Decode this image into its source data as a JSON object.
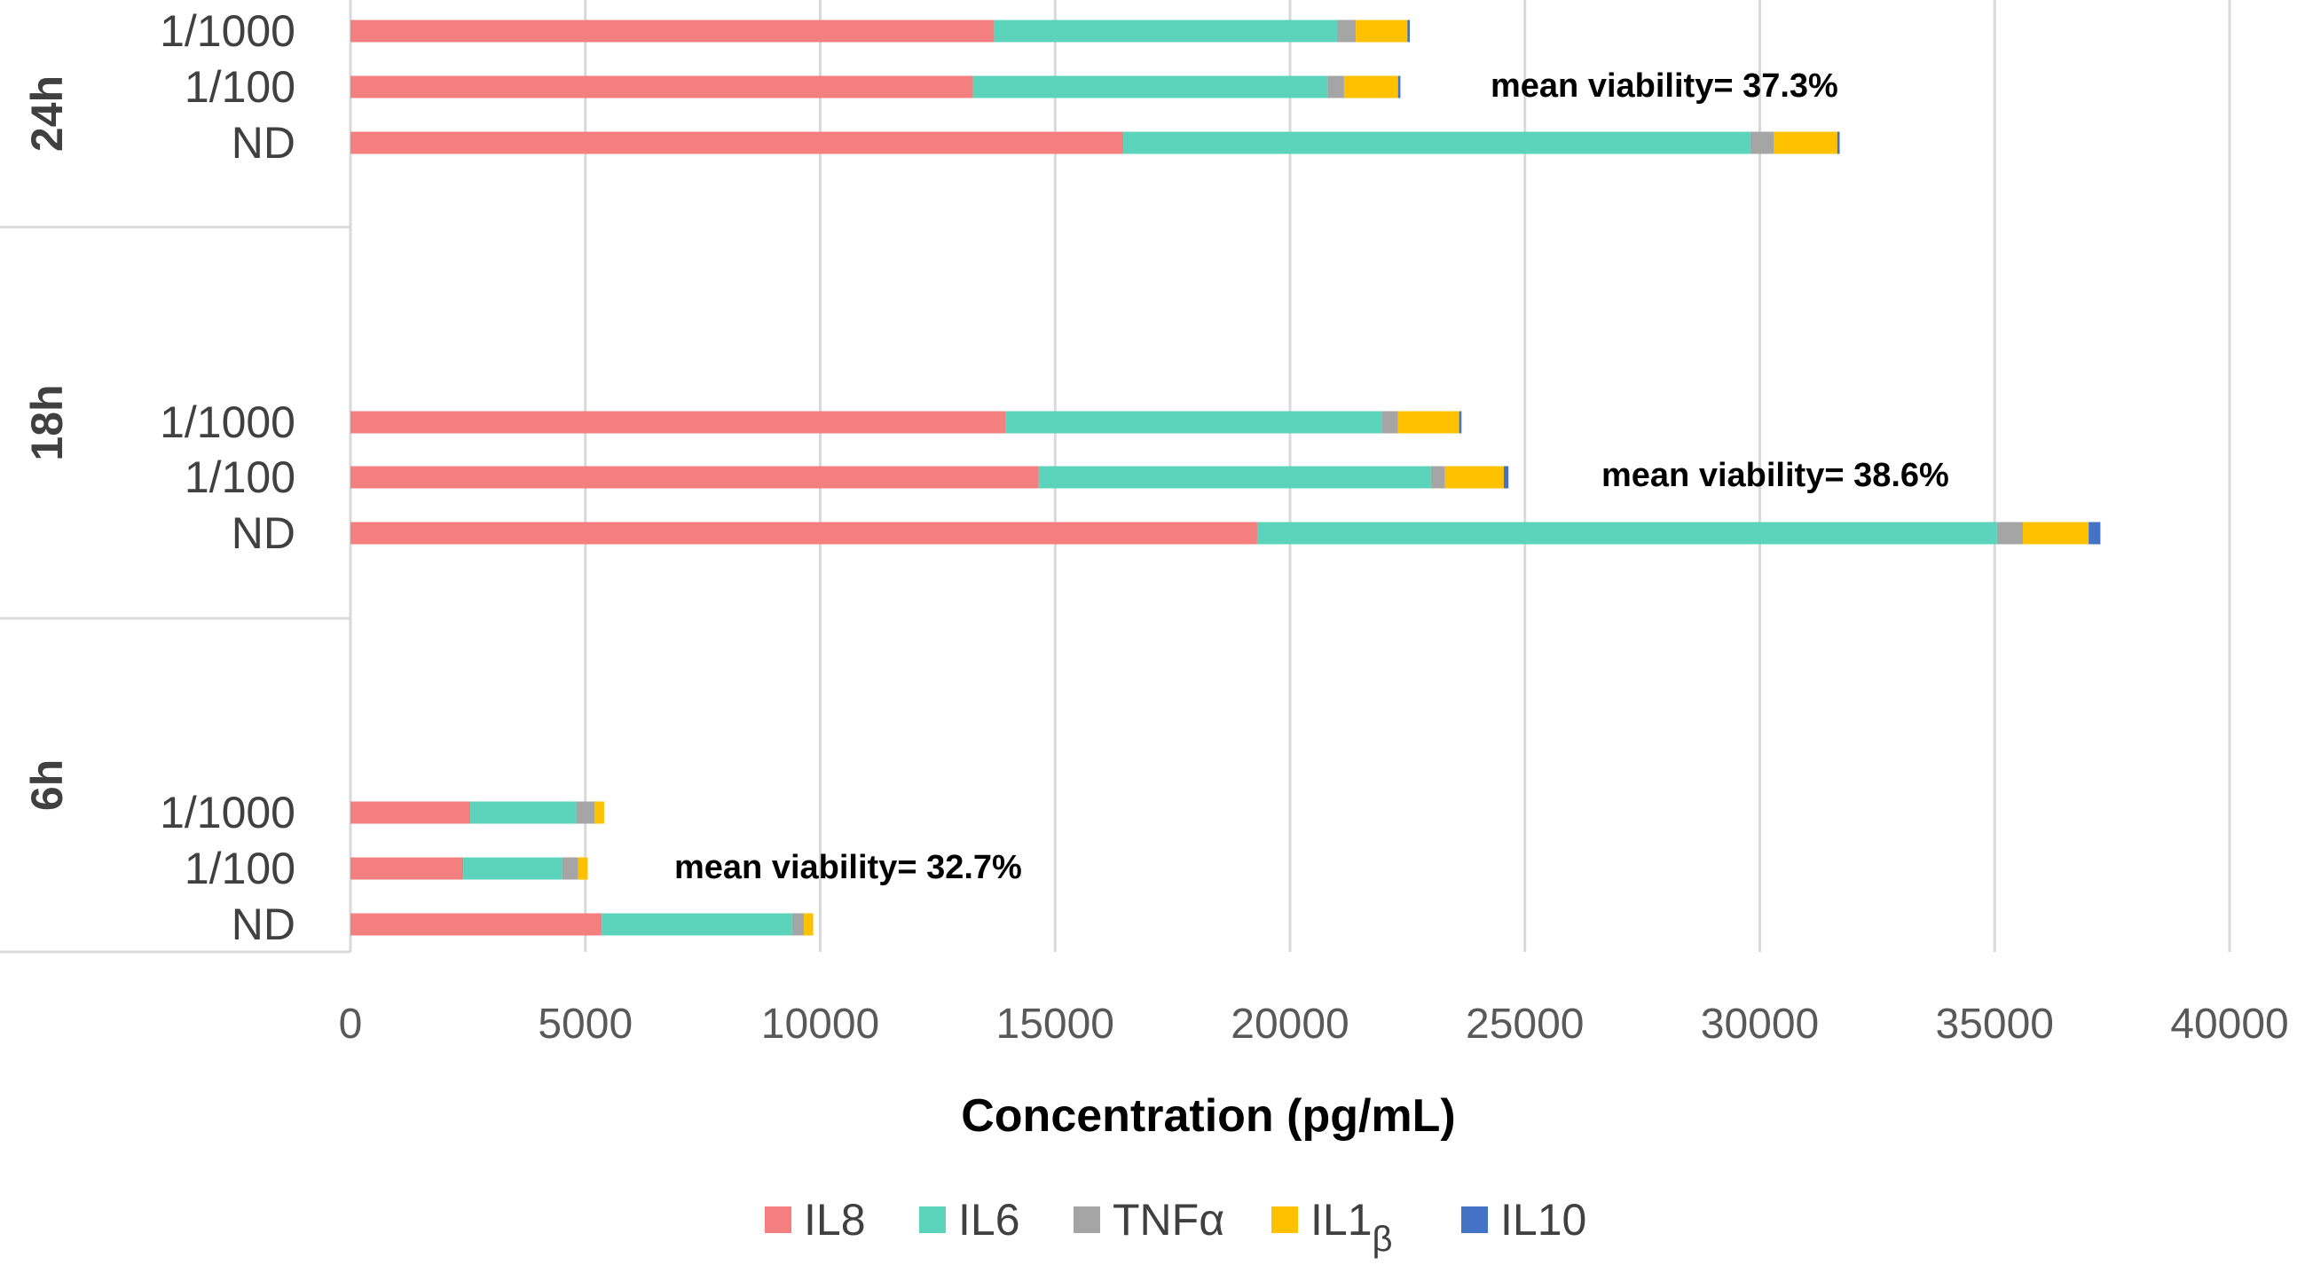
{
  "chart_data": {
    "type": "bar",
    "orientation": "horizontal",
    "stacked": true,
    "xlabel": "Concentration (pg/mL)",
    "xlim": [
      0,
      40000
    ],
    "xticks": [
      0,
      5000,
      10000,
      15000,
      20000,
      25000,
      30000,
      35000,
      40000
    ],
    "grid": true,
    "legend_position": "bottom",
    "colors": {
      "IL8": "#F47F7F",
      "IL6": "#5CD4BC",
      "TNFa": "#A5A5A5",
      "IL1b": "#FFC000",
      "IL10": "#4472C4"
    },
    "legend": [
      {
        "key": "IL8",
        "text": "IL8",
        "sub": ""
      },
      {
        "key": "IL6",
        "text": "IL6",
        "sub": ""
      },
      {
        "key": "TNFa",
        "text": "TNFα",
        "sub": ""
      },
      {
        "key": "IL1b",
        "text": "IL1",
        "sub": "β"
      },
      {
        "key": "IL10",
        "text": "IL10",
        "sub": ""
      }
    ],
    "series_order": [
      "IL8",
      "IL6",
      "TNFa",
      "IL1b",
      "IL10"
    ],
    "groups": [
      {
        "label": "24h",
        "annotation": "mean viability= 37.3%",
        "bars": [
          {
            "label": "1/1000",
            "values": {
              "IL8": 13700,
              "IL6": 7300,
              "TNFa": 400,
              "IL1b": 1100,
              "IL10": 50
            }
          },
          {
            "label": "1/100",
            "values": {
              "IL8": 13250,
              "IL6": 7550,
              "TNFa": 350,
              "IL1b": 1150,
              "IL10": 50
            }
          },
          {
            "label": "ND",
            "values": {
              "IL8": 16450,
              "IL6": 13350,
              "TNFa": 500,
              "IL1b": 1350,
              "IL10": 50
            }
          }
        ]
      },
      {
        "label": "18h",
        "annotation": "mean viability= 38.6%",
        "bars": [
          {
            "label": "1/1000",
            "values": {
              "IL8": 13950,
              "IL6": 8000,
              "TNFa": 350,
              "IL1b": 1300,
              "IL10": 50
            }
          },
          {
            "label": "1/100",
            "values": {
              "IL8": 14650,
              "IL6": 8350,
              "TNFa": 300,
              "IL1b": 1250,
              "IL10": 100
            }
          },
          {
            "label": "ND",
            "values": {
              "IL8": 19300,
              "IL6": 15750,
              "TNFa": 550,
              "IL1b": 1400,
              "IL10": 250
            }
          }
        ]
      },
      {
        "label": "6h",
        "annotation": "mean viability= 32.7%",
        "bars": [
          {
            "label": "1/1000",
            "values": {
              "IL8": 2550,
              "IL6": 2250,
              "TNFa": 400,
              "IL1b": 200,
              "IL10": 0
            }
          },
          {
            "label": "1/100",
            "values": {
              "IL8": 2400,
              "IL6": 2100,
              "TNFa": 350,
              "IL1b": 200,
              "IL10": 0
            }
          },
          {
            "label": "ND",
            "values": {
              "IL8": 5350,
              "IL6": 4050,
              "TNFa": 250,
              "IL1b": 200,
              "IL10": 0
            }
          }
        ]
      }
    ]
  }
}
